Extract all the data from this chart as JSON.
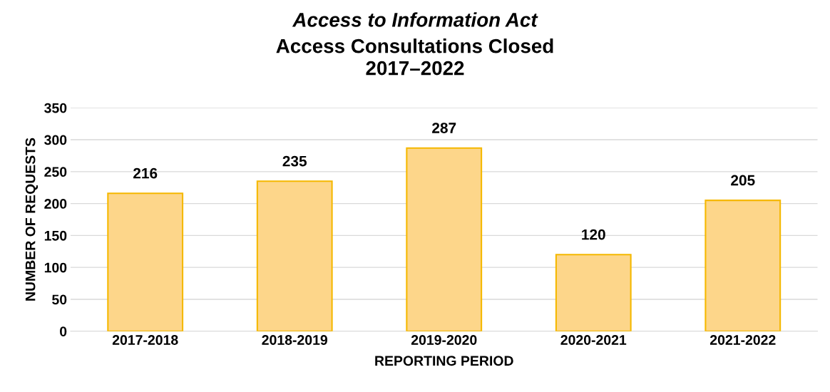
{
  "chart_data": {
    "type": "bar",
    "title": "Access to Information Act",
    "subtitle": "Access Consultations Closed\n2017–2022",
    "xlabel": "REPORTING PERIOD",
    "ylabel": "NUMBER OF REQUESTS",
    "categories": [
      "2017-2018",
      "2018-2019",
      "2019-2020",
      "2020-2021",
      "2021-2022"
    ],
    "values": [
      216,
      235,
      287,
      120,
      205
    ],
    "color": "#fdd68a",
    "ylim": [
      0,
      350
    ],
    "yticks": [
      0,
      50,
      100,
      150,
      200,
      250,
      300,
      350
    ],
    "grid": "y",
    "data_labels": true
  }
}
